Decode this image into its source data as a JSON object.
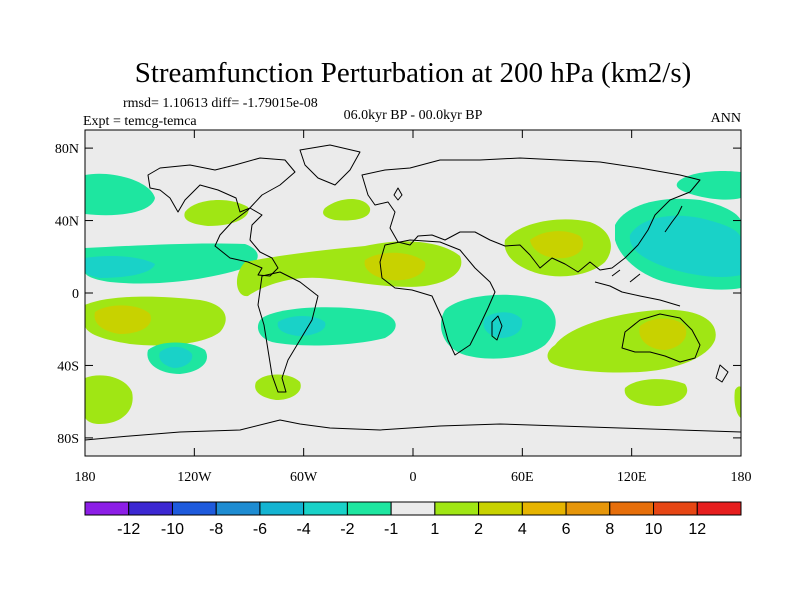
{
  "header": {
    "title": "Streamfunction Perturbation at 200 hPa (km2/s)",
    "stats": "rmsd= 1.10613 diff= -1.79015e-08",
    "experiment": "Expt = temcg-temca",
    "period": "06.0kyr BP - 00.0kyr BP",
    "season": "ANN"
  },
  "axes": {
    "lon_ticks": [
      {
        "lon": -180,
        "label": "180"
      },
      {
        "lon": -120,
        "label": "120W"
      },
      {
        "lon": -60,
        "label": "60W"
      },
      {
        "lon": 0,
        "label": "0"
      },
      {
        "lon": 60,
        "label": "60E"
      },
      {
        "lon": 120,
        "label": "120E"
      },
      {
        "lon": 180,
        "label": "180"
      }
    ],
    "lat_ticks": [
      {
        "lat": 80,
        "label": "80N"
      },
      {
        "lat": 40,
        "label": "40N"
      },
      {
        "lat": 0,
        "label": "0"
      },
      {
        "lat": -40,
        "label": "40S"
      },
      {
        "lat": -80,
        "label": "80S"
      }
    ],
    "lon_range": [
      -180,
      180
    ],
    "lat_range": [
      -90,
      90
    ]
  },
  "colorbar": {
    "colors": [
      "#8c1ee6",
      "#3c28d2",
      "#1e5adc",
      "#1e8cd2",
      "#14b4d2",
      "#19d2c8",
      "#1ee6a0",
      "#ebebeb",
      "#a0e614",
      "#c8d200",
      "#e6b400",
      "#e6960a",
      "#e66e0a",
      "#e64614",
      "#e61e1e"
    ],
    "labels": [
      "-12",
      "-10",
      "-8",
      "-6",
      "-4",
      "-2",
      "-1",
      "1",
      "2",
      "4",
      "6",
      "8",
      "10",
      "12"
    ]
  },
  "chart_data": {
    "type": "map",
    "field": "200 hPa streamfunction perturbation",
    "units": "km2/s",
    "background_level": "-1 to 1",
    "anomalies": [
      {
        "name": "north-atlantic-high",
        "lon": -40,
        "lat": 48,
        "value": 1.5
      },
      {
        "name": "north-pacific-low",
        "lon": -160,
        "lat": 62,
        "value": -1.5
      },
      {
        "name": "west-pacific-low",
        "lon": 145,
        "lat": 30,
        "value": -3
      },
      {
        "name": "arctic-pacific-low",
        "lon": 165,
        "lat": 65,
        "value": -1.5
      },
      {
        "name": "central-pacific-low",
        "lon": -150,
        "lat": 15,
        "value": -3
      },
      {
        "name": "tropical-north-africa-high",
        "lon": 0,
        "lat": 15,
        "value": 4
      },
      {
        "name": "asian-high",
        "lon": 80,
        "lat": 30,
        "value": 4
      },
      {
        "name": "se-pacific-high",
        "lon": -160,
        "lat": -12,
        "value": 4
      },
      {
        "name": "south-atlantic-low",
        "lon": -40,
        "lat": -15,
        "value": -2
      },
      {
        "name": "south-indian-low",
        "lon": 60,
        "lat": -15,
        "value": -3
      },
      {
        "name": "australia-high",
        "lon": 140,
        "lat": -22,
        "value": 4
      },
      {
        "name": "south-pacific-low",
        "lon": -130,
        "lat": -32,
        "value": -3
      },
      {
        "name": "south-america-high",
        "lon": -65,
        "lat": -48,
        "value": 2
      },
      {
        "name": "southern-ocean-high",
        "lon": 130,
        "lat": -50,
        "value": 2
      },
      {
        "name": "dateline-southern-high",
        "lon": -170,
        "lat": -55,
        "value": 2
      }
    ]
  }
}
